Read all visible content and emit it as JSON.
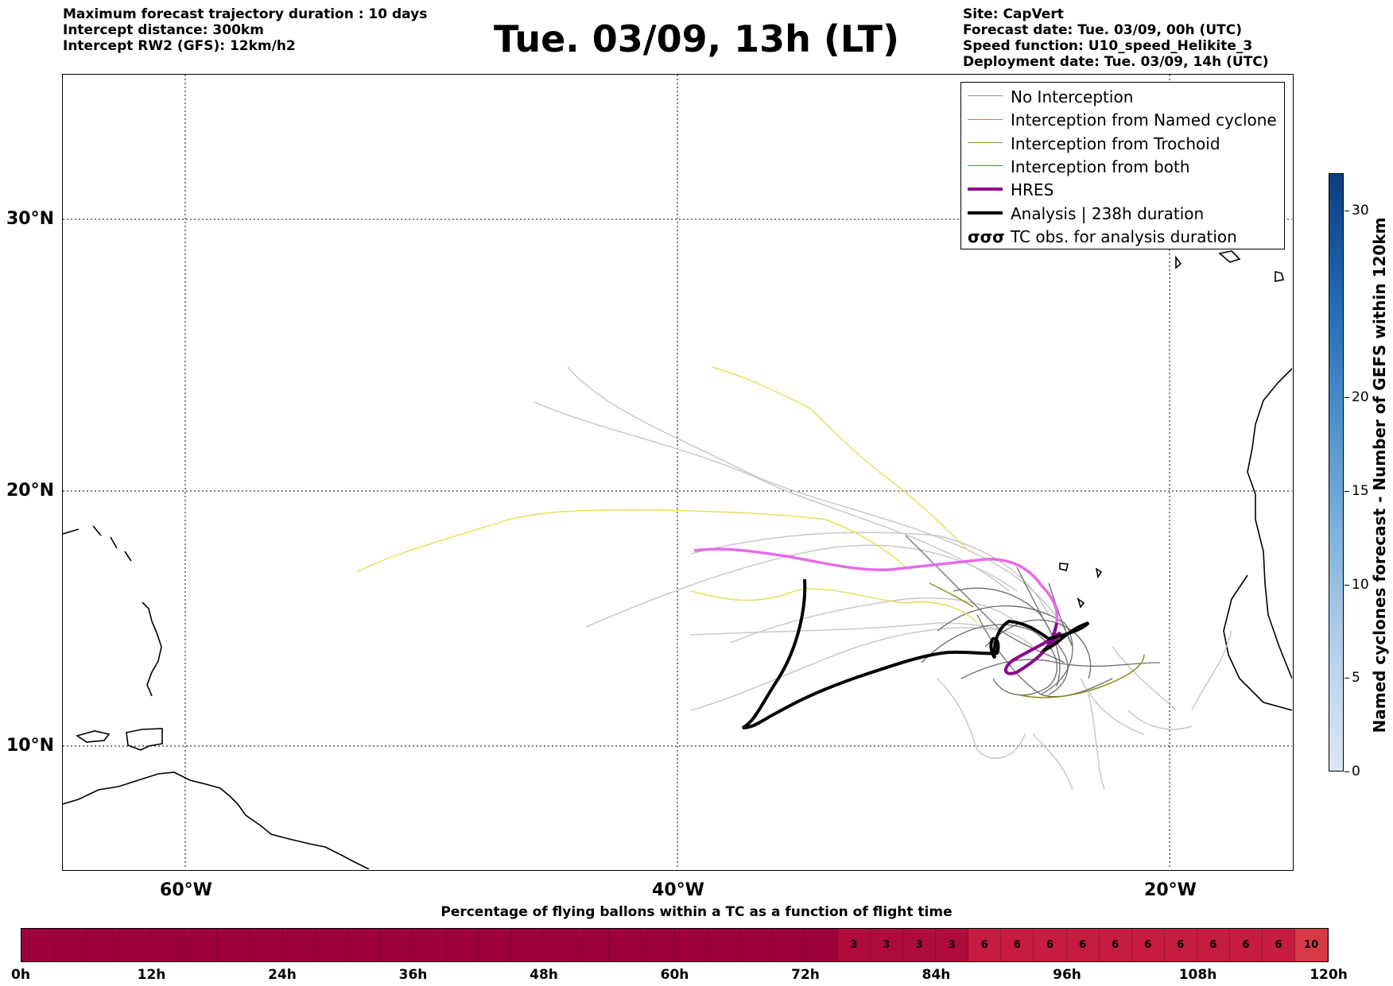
{
  "header_left": [
    "Maximum forecast trajectory duration : 10 days",
    "Intercept distance: 300km",
    "Intercept RW2 (GFS):  12km/h2"
  ],
  "title": "Tue. 03/09, 13h (LT)",
  "header_right": [
    "Site: CapVert",
    "Forecast date: Tue. 03/09, 00h (UTC)",
    "Speed function: U10_speed_Helikite_3",
    "Deployment date: Tue. 03/09, 14h (UTC)"
  ],
  "map": {
    "lat_labels": [
      "30°N",
      "20°N",
      "10°N"
    ],
    "lon_labels": [
      "60°W",
      "40°W",
      "20°W"
    ],
    "lat_values": [
      30,
      20,
      10
    ],
    "lon_values": [
      -60,
      -40,
      -20
    ]
  },
  "legend": [
    {
      "label": "No Interception",
      "color": "#8c8c8c",
      "width": 1.5
    },
    {
      "label": "Interception from Named cyclone",
      "color": "#ff6a3d",
      "width": 1.5
    },
    {
      "label": "Interception from Trochoid",
      "color": "#8a8a1a",
      "width": 1.5
    },
    {
      "label": "Interception from both",
      "color": "#2ca02c",
      "width": 1.5
    },
    {
      "label": "HRES",
      "color": "#8b0a8b",
      "width": 4
    },
    {
      "label": "Analysis | 238h duration",
      "color": "#000000",
      "width": 4
    },
    {
      "label": "TC obs. for analysis duration",
      "color": "#000000",
      "width": 0,
      "symbol": "σσσ"
    }
  ],
  "colorbar": {
    "title": "Named cyclones forecast - Number of GEFS within 120km",
    "ticks": [
      0,
      5,
      10,
      15,
      20,
      30
    ],
    "max": 32
  },
  "bottom": {
    "title": "Percentage of flying ballons within a TC as a function of flight time",
    "cells": [
      "",
      "",
      "",
      "",
      "",
      "",
      "",
      "",
      "",
      "",
      "",
      "",
      "",
      "",
      "",
      "",
      "",
      "",
      "",
      "",
      "",
      "",
      "",
      "",
      "",
      "3",
      "3",
      "3",
      "3",
      "6",
      "6",
      "6",
      "6",
      "6",
      "6",
      "6",
      "6",
      "6",
      "6",
      "10"
    ],
    "time_labels": [
      "0h",
      "12h",
      "24h",
      "36h",
      "48h",
      "60h",
      "72h",
      "84h",
      "96h",
      "108h",
      "120h"
    ],
    "colors": {
      "0": "#9c0039",
      "3": "#ad0c3c",
      "6": "#c51c3f",
      "10": "#d73a47"
    }
  }
}
